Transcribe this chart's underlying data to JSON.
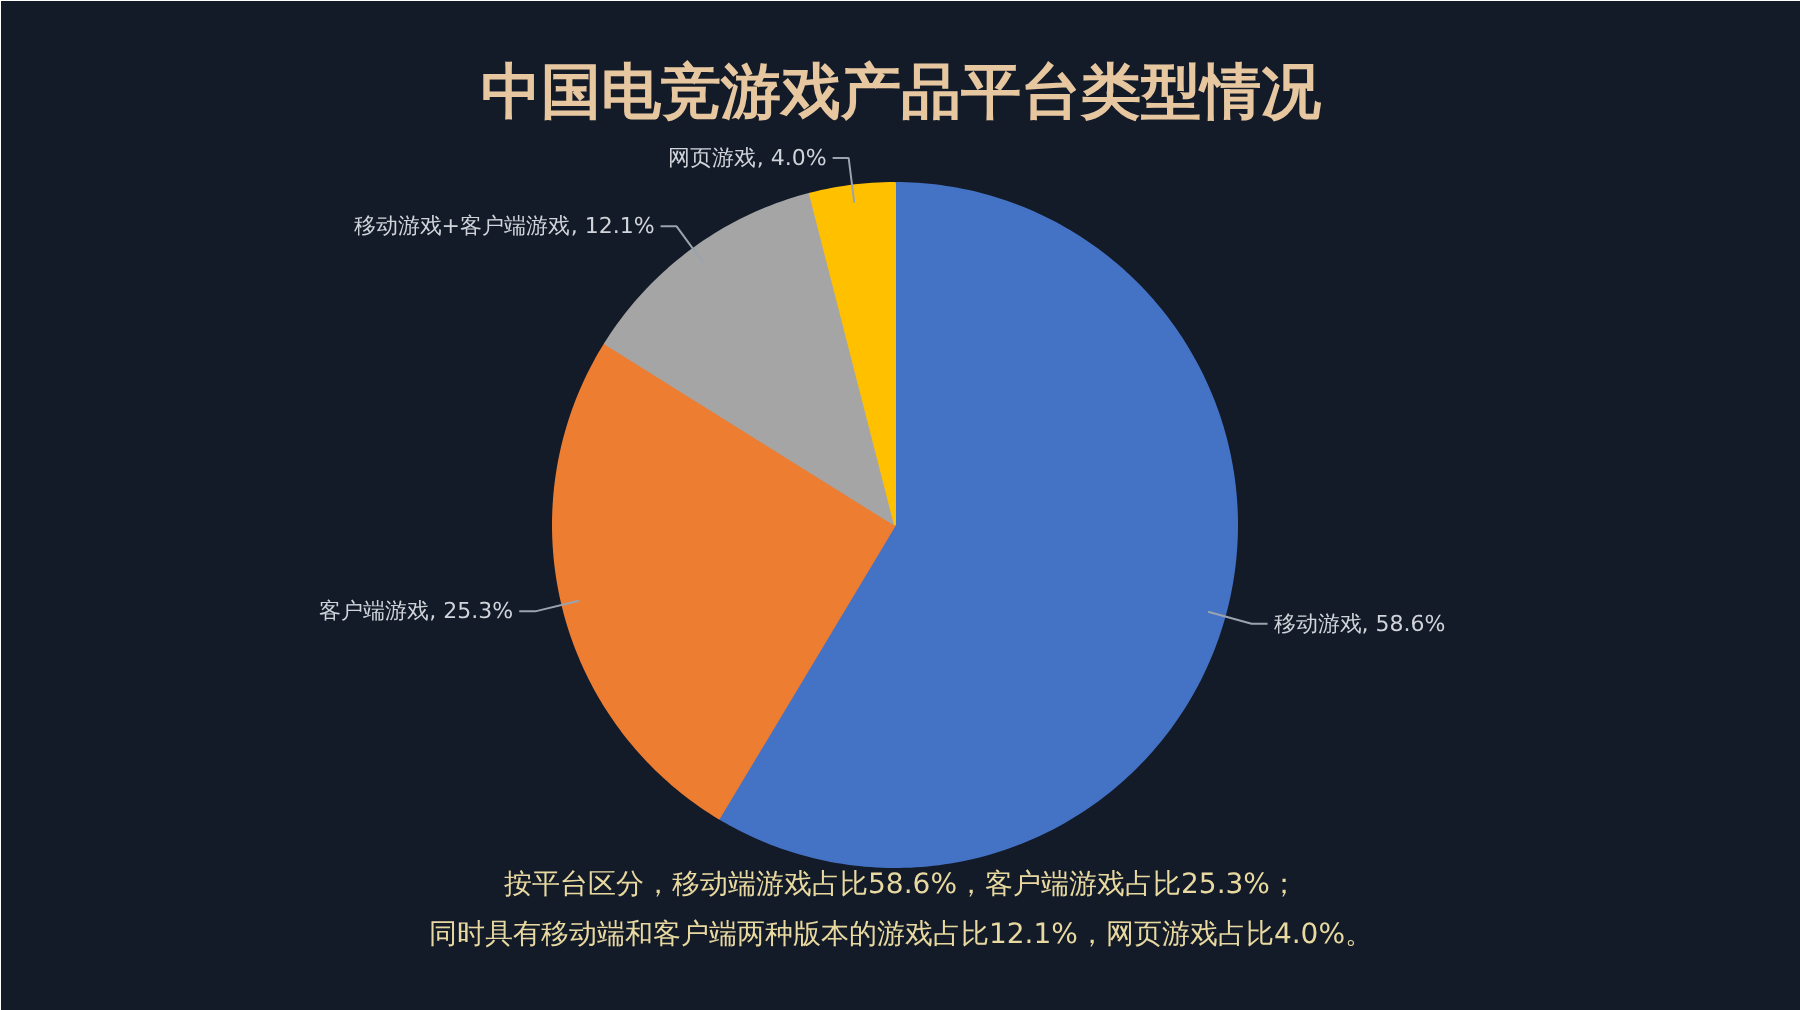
{
  "chart_data": {
    "type": "pie",
    "title": "中国电竞游戏产品平台类型情况",
    "categories": [
      "移动游戏",
      "客户端游戏",
      "移动游戏+客户端游戏",
      "网页游戏"
    ],
    "values": [
      58.6,
      25.3,
      12.1,
      4.0
    ],
    "colors": [
      "#4472c4",
      "#ed7d31",
      "#a5a5a5",
      "#ffc000"
    ],
    "value_labels": [
      ", 58.6%",
      ", 25.3%",
      ", 12.1%",
      ", 4.0%"
    ],
    "annotations": [
      "按平台区分，移动端游戏占比58.6%，客户端游戏占比25.3%；",
      "同时具有移动端和客户端两种版本的游戏占比12.1%，网页游戏占比4.0%。"
    ]
  }
}
